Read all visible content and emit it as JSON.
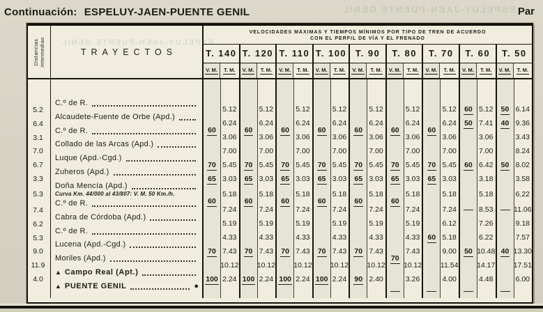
{
  "page": {
    "continuation_label": "Continuación:",
    "route_title": "ESPELUY-JAEN-PUENTE GENIL",
    "corner_label": "Par",
    "bleedthrough_text": "ESPELUY-JAEN-PUENTE GENIL"
  },
  "colors": {
    "paper": "#d8d4c5",
    "table_paper": "#f0edde",
    "ink": "#16130d"
  },
  "table": {
    "distances_header": "Distancias intermedias",
    "trayectos_header": "TRAYECTOS",
    "banner_line1": "VELOCIDADES MÁXIMAS Y TIEMPOS MÍNIMOS POR TIPO DE TREN DE ACUERDO",
    "banner_line2": "CON EL PERFIL DE VÍA Y EL FRENADO",
    "vm_label": "V. M.",
    "tm_label": "T. M.",
    "train_types": [
      "T. 140",
      "T. 120",
      "T. 110",
      "T. 100",
      "T. 90",
      "T. 80",
      "T. 70",
      "T. 60",
      "T. 50"
    ],
    "stations": [
      {
        "name": "C.º de R."
      },
      {
        "name": "Alcaudete-Fuente de Orbe (Apd.)"
      },
      {
        "name": "C.º de R."
      },
      {
        "name": "Collado de las Arcas (Apd.)"
      },
      {
        "name": "Luque (Apd.-Cgd.)"
      },
      {
        "name": "Zuheros (Apd.)"
      },
      {
        "name": "Doña Mencía (Apd.)",
        "note": "Curva Km. 44/000 al 43/807: V. M. 50 Km./h."
      },
      {
        "name": "C.º de R."
      },
      {
        "name": "Cabra de Córdoba (Apd.)"
      },
      {
        "name": "C.º de R."
      },
      {
        "name": "Lucena (Apd.-Cgd.)"
      },
      {
        "name": "Moriles (Apd.)"
      },
      {
        "name": "Campo Real (Apt.)",
        "triangle": true,
        "bold": true
      },
      {
        "name": "PUENTE GENIL",
        "triangle": true,
        "bold": true,
        "bullet": true
      }
    ],
    "distances": [
      "5.2",
      "6.4",
      "3.1",
      "7.0",
      "6.7",
      "3.3",
      "5.3",
      "7.4",
      "6.2",
      "5.3",
      "9.0",
      "11.9",
      "4.0"
    ],
    "columns": [
      {
        "train": "T. 140",
        "tm": [
          "5.12",
          "6.24",
          "3.06",
          "7.00",
          "5.45",
          "3.03",
          "5.18",
          "7.24",
          "5.19",
          "4.33",
          "7.43",
          "10.12",
          "2.24"
        ],
        "vm": [
          {
            "row": 1.5,
            "value": "60"
          },
          {
            "row": 4,
            "value": "70"
          },
          {
            "row": 5,
            "value": "65"
          },
          {
            "row": 6.5,
            "value": "60"
          },
          {
            "row": 10,
            "value": "70"
          },
          {
            "row": 12,
            "value": "100"
          }
        ]
      },
      {
        "train": "T. 120",
        "tm": [
          "5.12",
          "6.24",
          "3.06",
          "7.00",
          "5.45",
          "3.03",
          "5.18",
          "7.24",
          "5.19",
          "4.33",
          "7.43",
          "10.12",
          "2.24"
        ],
        "vm": [
          {
            "row": 1.5,
            "value": "60"
          },
          {
            "row": 4,
            "value": "70"
          },
          {
            "row": 5,
            "value": "65"
          },
          {
            "row": 6.5,
            "value": "60"
          },
          {
            "row": 10,
            "value": "70"
          },
          {
            "row": 12,
            "value": "100"
          }
        ]
      },
      {
        "train": "T. 110",
        "tm": [
          "5.12",
          "6.24",
          "3.06",
          "7.00",
          "5.45",
          "3.03",
          "5.18",
          "7.24",
          "5.19",
          "4.33",
          "7.43",
          "10.12",
          "2.24"
        ],
        "vm": [
          {
            "row": 1.5,
            "value": "60"
          },
          {
            "row": 4,
            "value": "70"
          },
          {
            "row": 5,
            "value": "65"
          },
          {
            "row": 6.5,
            "value": "60"
          },
          {
            "row": 10,
            "value": "70"
          },
          {
            "row": 12,
            "value": "100"
          }
        ]
      },
      {
        "train": "T. 100",
        "tm": [
          "5.12",
          "6.24",
          "3.06",
          "7.00",
          "5.45",
          "3.03",
          "5.18",
          "7.24",
          "5.19",
          "4.33",
          "7.43",
          "10.12",
          "2.24"
        ],
        "vm": [
          {
            "row": 1.5,
            "value": "60"
          },
          {
            "row": 4,
            "value": "70"
          },
          {
            "row": 5,
            "value": "65"
          },
          {
            "row": 6.5,
            "value": "60"
          },
          {
            "row": 10,
            "value": "70"
          },
          {
            "row": 12,
            "value": "100"
          }
        ]
      },
      {
        "train": "T. 90",
        "tm": [
          "5.12",
          "6.24",
          "3.06",
          "7.00",
          "5.45",
          "3.03",
          "5.18",
          "7.24",
          "5.19",
          "4.33",
          "7.43",
          "10.12",
          "2.40"
        ],
        "vm": [
          {
            "row": 1.5,
            "value": "60"
          },
          {
            "row": 4,
            "value": "70"
          },
          {
            "row": 5,
            "value": "65"
          },
          {
            "row": 6.5,
            "value": "60"
          },
          {
            "row": 10,
            "value": "70"
          },
          {
            "row": 12,
            "value": "90"
          }
        ]
      },
      {
        "train": "T. 80",
        "tm": [
          "5.12",
          "6.24",
          "3.06",
          "7.00",
          "5.45",
          "3.03",
          "5.18",
          "7.24",
          "5.19",
          "4.33",
          "7.43",
          "10.12",
          "3.26"
        ],
        "vm": [
          {
            "row": 1.5,
            "value": "60"
          },
          {
            "row": 4,
            "value": "70"
          },
          {
            "row": 5,
            "value": "65"
          },
          {
            "row": 6.5,
            "value": "60"
          },
          {
            "row": 10.5,
            "value": "70"
          },
          {
            "row": 12.9,
            "value": "—"
          }
        ]
      },
      {
        "train": "T. 70",
        "tm": [
          "5.12",
          "6.24",
          "3.06",
          "7.00",
          "5.45",
          "3.03",
          "5.18",
          "7.24",
          "6.12",
          "5.18",
          "9.00",
          "11.54",
          "4.00"
        ],
        "vm": [
          {
            "row": 1.5,
            "value": "60"
          },
          {
            "row": 4,
            "value": "70"
          },
          {
            "row": 5,
            "value": "65"
          },
          {
            "row": 9,
            "value": "60"
          },
          {
            "row": 12.9,
            "value": "—"
          }
        ]
      },
      {
        "train": "T. 60",
        "tm": [
          "5.12",
          "7.41",
          "3.06",
          "7.00",
          "6.42",
          "3.18",
          "5.18",
          "8.53",
          "7.26",
          "6.22",
          "10.48",
          "14.17",
          "4.48"
        ],
        "vm": [
          {
            "row": 0,
            "value": "60"
          },
          {
            "row": 1,
            "value": "50"
          },
          {
            "row": 4,
            "value": "60"
          },
          {
            "row": 7,
            "value": "—"
          },
          {
            "row": 10,
            "value": "50"
          },
          {
            "row": 12.9,
            "value": "—"
          }
        ]
      },
      {
        "train": "T. 50",
        "tm": [
          "6.14",
          "9.36",
          "3.43",
          "8.24",
          "8.02",
          "3.58",
          "6.22",
          "11.06",
          "9.18",
          "7.57",
          "13.30",
          "17.51",
          "6.00"
        ],
        "vm": [
          {
            "row": 0,
            "value": "50"
          },
          {
            "row": 1,
            "value": "40"
          },
          {
            "row": 4,
            "value": "50"
          },
          {
            "row": 7,
            "value": "—"
          },
          {
            "row": 10,
            "value": "40"
          },
          {
            "row": 12.9,
            "value": "—"
          }
        ]
      }
    ]
  }
}
